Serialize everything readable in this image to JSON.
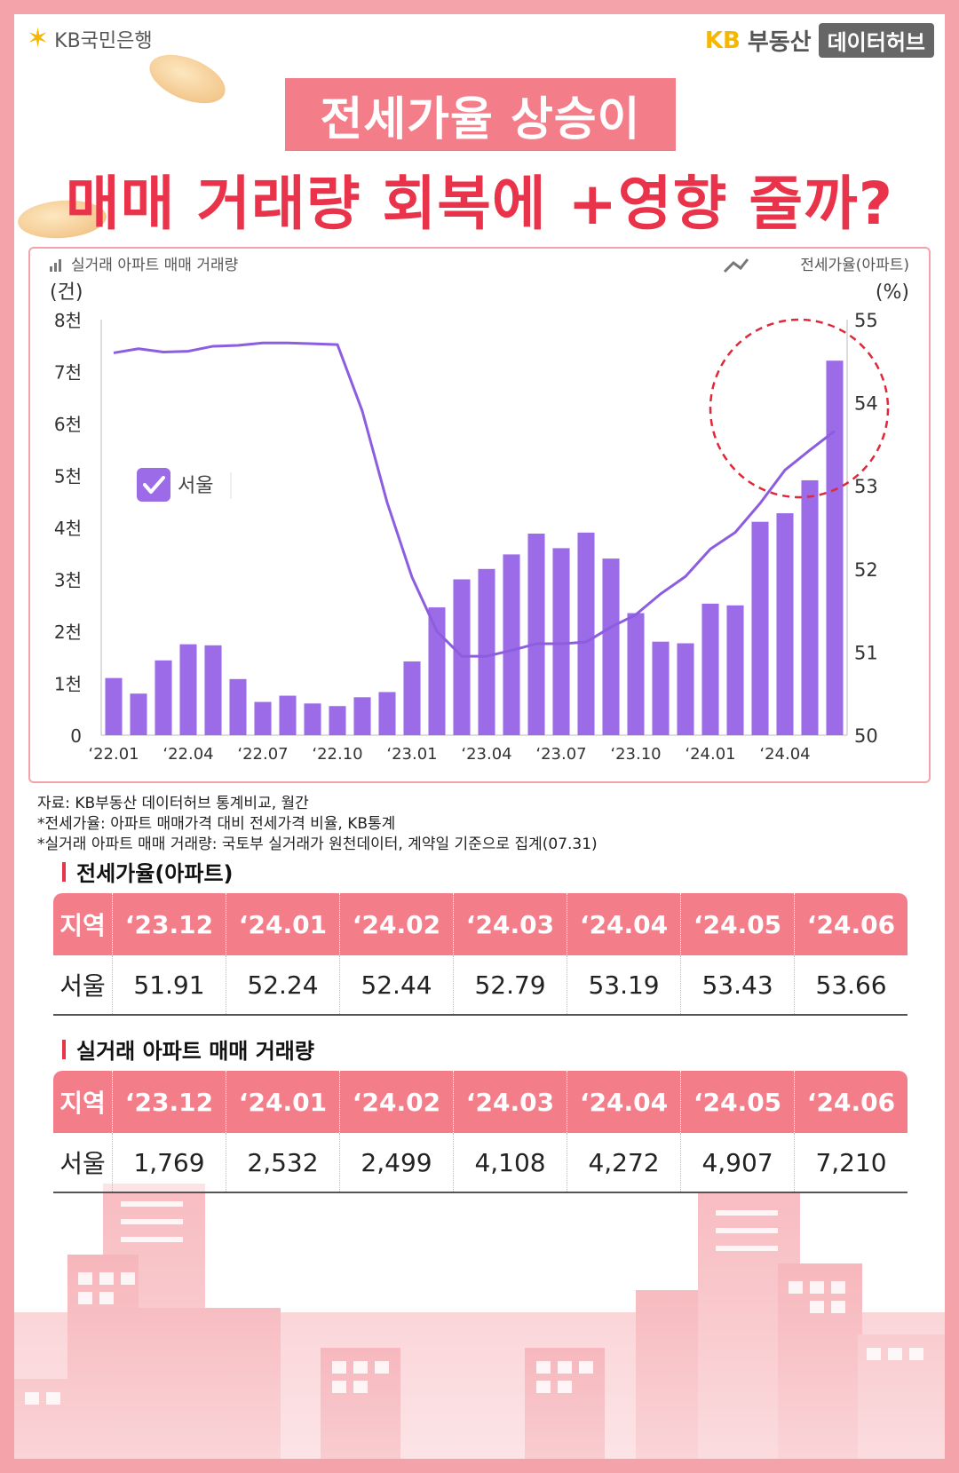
{
  "header": {
    "bank_logo": "KB국민은행",
    "brand_kb": "KB",
    "brand_name": "부동산",
    "brand_hub": "데이터허브"
  },
  "title": {
    "line1": "전세가율 상승이",
    "line2": "매매 거래량 회복에 +영향 줄까?"
  },
  "colors": {
    "bar": "#9b6be8",
    "line": "#8d5de0",
    "accent_pink": "#f47d8a",
    "accent_red": "#e8334a"
  },
  "chart_data": {
    "type": "bar",
    "legend_left": "실거래 아파트 매매 거래량",
    "legend_right": "전세가율(아파트)",
    "region_badge": "서울",
    "y_left_unit": "(건)",
    "y_right_unit": "(%)",
    "y_left_ticks": [
      "0",
      "1천",
      "2천",
      "3천",
      "4천",
      "5천",
      "6천",
      "7천",
      "8천"
    ],
    "y_right_ticks": [
      "50",
      "51",
      "52",
      "53",
      "54",
      "55"
    ],
    "ylim_left": [
      0,
      8000
    ],
    "ylim_right": [
      50,
      55
    ],
    "x_tick_labels": [
      {
        "i": 0,
        "label": "‘22.01"
      },
      {
        "i": 3,
        "label": "‘22.04"
      },
      {
        "i": 6,
        "label": "‘22.07"
      },
      {
        "i": 9,
        "label": "‘22.10"
      },
      {
        "i": 12,
        "label": "‘23.01"
      },
      {
        "i": 15,
        "label": "‘23.04"
      },
      {
        "i": 18,
        "label": "‘23.07"
      },
      {
        "i": 21,
        "label": "‘23.10"
      },
      {
        "i": 24,
        "label": "‘24.01"
      },
      {
        "i": 27,
        "label": "‘24.04"
      }
    ],
    "categories": [
      "2022.01",
      "2022.02",
      "2022.03",
      "2022.04",
      "2022.05",
      "2022.06",
      "2022.07",
      "2022.08",
      "2022.09",
      "2022.10",
      "2022.11",
      "2022.12",
      "2023.01",
      "2023.02",
      "2023.03",
      "2023.04",
      "2023.05",
      "2023.06",
      "2023.07",
      "2023.08",
      "2023.09",
      "2023.10",
      "2023.11",
      "2023.12",
      "2024.01",
      "2024.02",
      "2024.03",
      "2024.04",
      "2024.05",
      "2024.06"
    ],
    "series": [
      {
        "name": "실거래 아파트 매매 거래량",
        "axis": "left",
        "values": [
          1100,
          800,
          1440,
          1750,
          1730,
          1080,
          640,
          760,
          610,
          560,
          730,
          830,
          1420,
          2460,
          3000,
          3200,
          3480,
          3880,
          3600,
          3900,
          3400,
          2350,
          1800,
          1769,
          2532,
          2499,
          4108,
          4272,
          4907,
          7210
        ]
      },
      {
        "name": "전세가율(아파트)",
        "axis": "right",
        "type": "line",
        "values": [
          54.6,
          54.65,
          54.61,
          54.62,
          54.68,
          54.69,
          54.72,
          54.72,
          54.71,
          54.7,
          53.9,
          52.8,
          51.9,
          51.25,
          50.95,
          50.95,
          51.02,
          51.1,
          51.1,
          51.12,
          51.3,
          51.45,
          51.7,
          51.91,
          52.24,
          52.44,
          52.79,
          53.19,
          53.43,
          53.66
        ]
      }
    ]
  },
  "notes": [
    "자료: KB부동산 데이터허브 통계비교, 월간",
    "*전세가율: 아파트 매매가격 대비 전세가격 비율, KB통계",
    "*실거래 아파트 매매 거래량: 국토부 실거래가 원천데이터, 계약일 기준으로 집계(07.31)"
  ],
  "table1": {
    "title": "전세가율(아파트)",
    "header": [
      "지역",
      "‘23.12",
      "‘24.01",
      "‘24.02",
      "‘24.03",
      "‘24.04",
      "‘24.05",
      "‘24.06"
    ],
    "row": [
      "서울",
      "51.91",
      "52.24",
      "52.44",
      "52.79",
      "53.19",
      "53.43",
      "53.66"
    ]
  },
  "table2": {
    "title": "실거래 아파트 매매 거래량",
    "header": [
      "지역",
      "‘23.12",
      "‘24.01",
      "‘24.02",
      "‘24.03",
      "‘24.04",
      "‘24.05",
      "‘24.06"
    ],
    "row": [
      "서울",
      "1,769",
      "2,532",
      "2,499",
      "4,108",
      "4,272",
      "4,907",
      "7,210"
    ]
  }
}
